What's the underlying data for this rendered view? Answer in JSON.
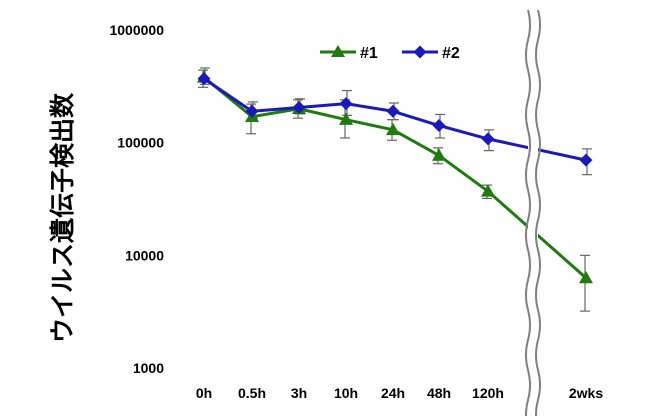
{
  "chart_data": {
    "type": "line",
    "title": "",
    "xlabel": "",
    "ylabel": "ウイルス遺伝子検出数",
    "y_scale": "log",
    "ylim": [
      1000,
      1000000
    ],
    "y_ticks": [
      "1000",
      "10000",
      "100000",
      "1000000"
    ],
    "categories": [
      "0h",
      "0.5h",
      "3h",
      "10h",
      "24h",
      "48h",
      "120h",
      "2wks"
    ],
    "axis_break": "between 120h and 2wks",
    "grid": false,
    "legend_position": "top",
    "series": [
      {
        "name": "#1",
        "color": "#1f7a0f",
        "marker": "triangle",
        "values": [
          380000,
          170000,
          200000,
          160000,
          130000,
          77000,
          37000,
          6300
        ],
        "err_low": [
          310000,
          120000,
          165000,
          110000,
          105000,
          65000,
          32000,
          3200
        ],
        "err_high": [
          440000,
          220000,
          240000,
          240000,
          160000,
          90000,
          42000,
          10000
        ]
      },
      {
        "name": "#2",
        "color": "#1a1ab8",
        "marker": "diamond",
        "values": [
          370000,
          190000,
          205000,
          222000,
          190000,
          142000,
          108000,
          70000
        ],
        "err_low": [
          330000,
          165000,
          180000,
          175000,
          160000,
          110000,
          85000,
          52000
        ],
        "err_high": [
          460000,
          230000,
          245000,
          290000,
          225000,
          178000,
          130000,
          88000
        ]
      }
    ]
  }
}
